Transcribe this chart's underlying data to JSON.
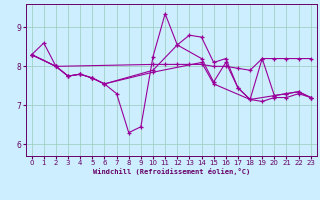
{
  "xlabel": "Windchill (Refroidissement éolien,°C)",
  "bg_color": "#cceeff",
  "line_color": "#990099",
  "grid_color": "#99ccbb",
  "xlim": [
    -0.5,
    23.5
  ],
  "ylim": [
    5.7,
    9.6
  ],
  "xticks": [
    0,
    1,
    2,
    3,
    4,
    5,
    6,
    7,
    8,
    9,
    10,
    11,
    12,
    13,
    14,
    15,
    16,
    17,
    18,
    19,
    20,
    21,
    22,
    23
  ],
  "yticks": [
    6,
    7,
    8,
    9
  ],
  "lines": [
    {
      "x": [
        0,
        1,
        2,
        3,
        4,
        5,
        6,
        7,
        8,
        9,
        10,
        11,
        12,
        13,
        14,
        15,
        16,
        17,
        18,
        19,
        20,
        21,
        22,
        23
      ],
      "y": [
        8.3,
        8.6,
        8.0,
        7.75,
        7.8,
        7.7,
        7.55,
        7.3,
        6.3,
        6.45,
        8.25,
        9.35,
        8.55,
        8.8,
        8.75,
        8.1,
        8.2,
        7.45,
        7.15,
        8.2,
        7.25,
        7.3,
        7.35,
        7.2
      ]
    },
    {
      "x": [
        0,
        2,
        3,
        4,
        5,
        6,
        10,
        12,
        14,
        15,
        16,
        17,
        18,
        20,
        21,
        22,
        23
      ],
      "y": [
        8.3,
        8.0,
        7.75,
        7.8,
        7.7,
        7.55,
        7.9,
        8.55,
        8.2,
        7.6,
        8.1,
        7.45,
        7.15,
        7.25,
        7.3,
        7.35,
        7.2
      ]
    },
    {
      "x": [
        0,
        2,
        3,
        4,
        5,
        6,
        10,
        14,
        15,
        18,
        19,
        20,
        21,
        22,
        23
      ],
      "y": [
        8.3,
        8.0,
        7.75,
        7.8,
        7.7,
        7.55,
        7.85,
        8.1,
        7.55,
        7.15,
        7.1,
        7.2,
        7.2,
        7.3,
        7.2
      ]
    },
    {
      "x": [
        0,
        2,
        10,
        11,
        12,
        13,
        14,
        15,
        16,
        17,
        18,
        19,
        20,
        21,
        22,
        23
      ],
      "y": [
        8.3,
        8.0,
        8.05,
        8.05,
        8.05,
        8.05,
        8.05,
        8.0,
        8.0,
        7.95,
        7.9,
        8.2,
        8.2,
        8.2,
        8.2,
        8.2
      ]
    }
  ]
}
